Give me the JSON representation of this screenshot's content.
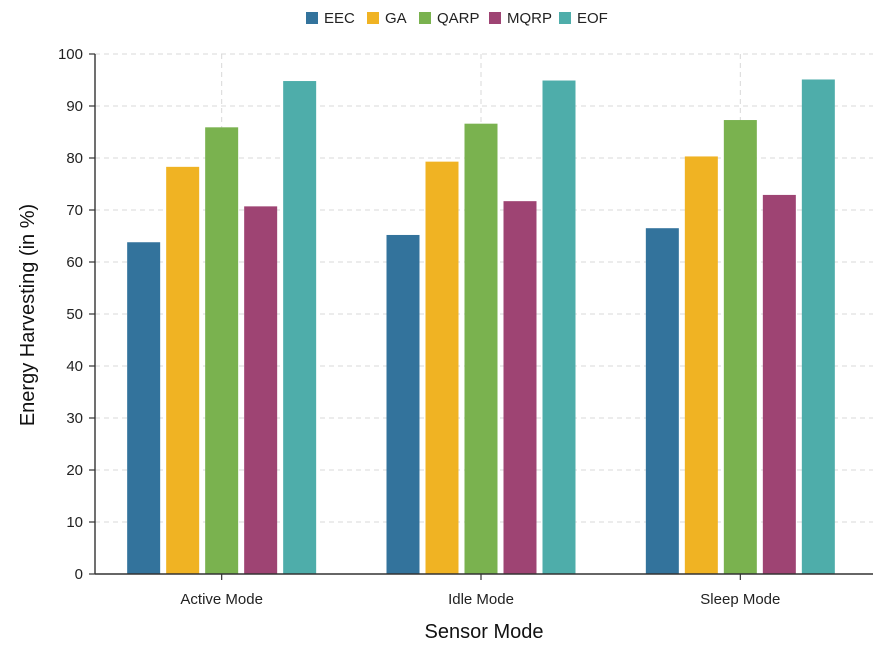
{
  "chart_data": {
    "type": "bar",
    "title": "",
    "xlabel": "Sensor Mode",
    "ylabel": "Energy Harvesting (in %)",
    "ylim": [
      0,
      100
    ],
    "yticks": [
      0,
      10,
      20,
      30,
      40,
      50,
      60,
      70,
      80,
      90,
      100
    ],
    "categories": [
      "Active Mode",
      "Idle Mode",
      "Sleep Mode"
    ],
    "legend_position": "top-center",
    "grid": true,
    "series": [
      {
        "name": "EEC",
        "color": "#33739c",
        "values": [
          63.8,
          65.2,
          66.5
        ]
      },
      {
        "name": "GA",
        "color": "#f0b323",
        "values": [
          78.3,
          79.3,
          80.3
        ]
      },
      {
        "name": "QARP",
        "color": "#7ab24f",
        "values": [
          85.9,
          86.6,
          87.3
        ]
      },
      {
        "name": "MQRP",
        "color": "#9e4473",
        "values": [
          70.7,
          71.7,
          72.9
        ]
      },
      {
        "name": "EOF",
        "color": "#4eadaa",
        "values": [
          94.8,
          94.9,
          95.1
        ]
      }
    ]
  }
}
